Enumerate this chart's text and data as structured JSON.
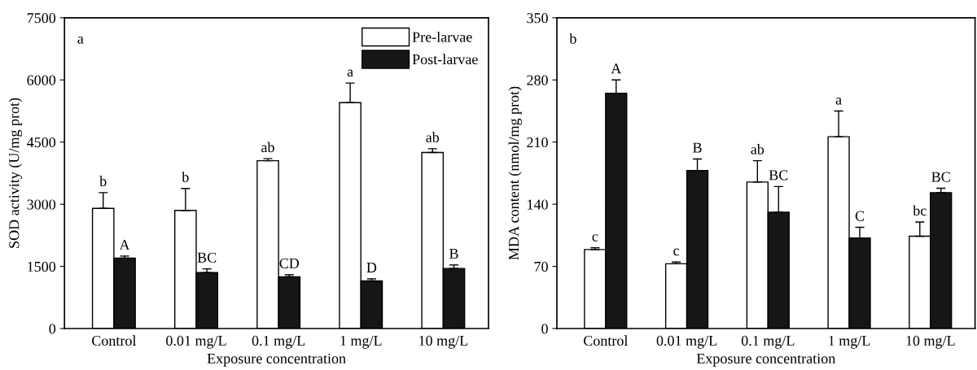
{
  "chart_data": [
    {
      "type": "bar",
      "xlabel": "Exposure concentration",
      "ylabel": "SOD activity (U/mg prot)",
      "annotations": [
        "a"
      ],
      "categories": [
        "Control",
        "0.01 mg/L",
        "0.1 mg/L",
        "1 mg/L",
        "10 mg/L"
      ],
      "series": [
        {
          "name": "Pre-larvae",
          "color": "#ffffff",
          "values": [
            2900,
            2850,
            4050,
            5450,
            4250
          ],
          "errors": [
            380,
            530,
            50,
            475,
            90
          ],
          "value_labels": [
            "b",
            "b",
            "ab",
            "a",
            "ab"
          ]
        },
        {
          "name": "Post-larvae",
          "color": "#161616",
          "values": [
            1700,
            1350,
            1250,
            1150,
            1450
          ],
          "errors": [
            50,
            90,
            50,
            50,
            85
          ],
          "value_labels": [
            "A",
            "BC",
            "CD",
            "D",
            "B"
          ]
        }
      ],
      "ylim": [
        0,
        7500
      ],
      "yticks": [
        0,
        1500,
        3000,
        4500,
        6000,
        7500
      ],
      "legend": "top right",
      "grid": false
    },
    {
      "type": "bar",
      "xlabel": "Exposure concentration",
      "ylabel": "MDA content (nmol/mg prot)",
      "annotations": [
        "b"
      ],
      "categories": [
        "Control",
        "0.01 mg/L",
        "0.1 mg/L",
        "1 mg/L",
        "10 mg/L"
      ],
      "series": [
        {
          "color": "#ffffff",
          "values": [
            89,
            73,
            165,
            216,
            104
          ],
          "errors": [
            2,
            2,
            24,
            29,
            16
          ],
          "value_labels": [
            "c",
            "c",
            "ab",
            "a",
            "bc"
          ]
        },
        {
          "color": "#161616",
          "values": [
            265,
            178,
            131,
            102,
            153
          ],
          "errors": [
            15,
            13,
            29,
            12,
            5
          ],
          "value_labels": [
            "A",
            "B",
            "BC",
            "C",
            "BC"
          ]
        }
      ],
      "ylim": [
        0,
        350
      ],
      "yticks": [
        0,
        70,
        140,
        210,
        280,
        350
      ],
      "legend": false,
      "grid": false
    }
  ]
}
